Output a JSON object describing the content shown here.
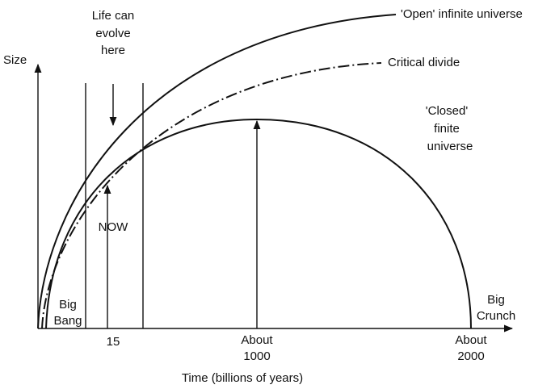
{
  "axes": {
    "y_label": "Size",
    "x_label": "Time (billions of years)"
  },
  "annotations": {
    "life": [
      "Life can",
      "evolve",
      "here"
    ],
    "open": "'Open' infinite universe",
    "critical": "Critical divide",
    "closed": [
      "'Closed'",
      "finite",
      "universe"
    ],
    "now": "NOW",
    "big_bang": [
      "Big",
      "Bang"
    ],
    "big_crunch": [
      "Big",
      "Crunch"
    ]
  },
  "x_labels": {
    "now_time": "15",
    "peak": [
      "About",
      "1000"
    ],
    "end": [
      "About",
      "2000"
    ]
  }
}
